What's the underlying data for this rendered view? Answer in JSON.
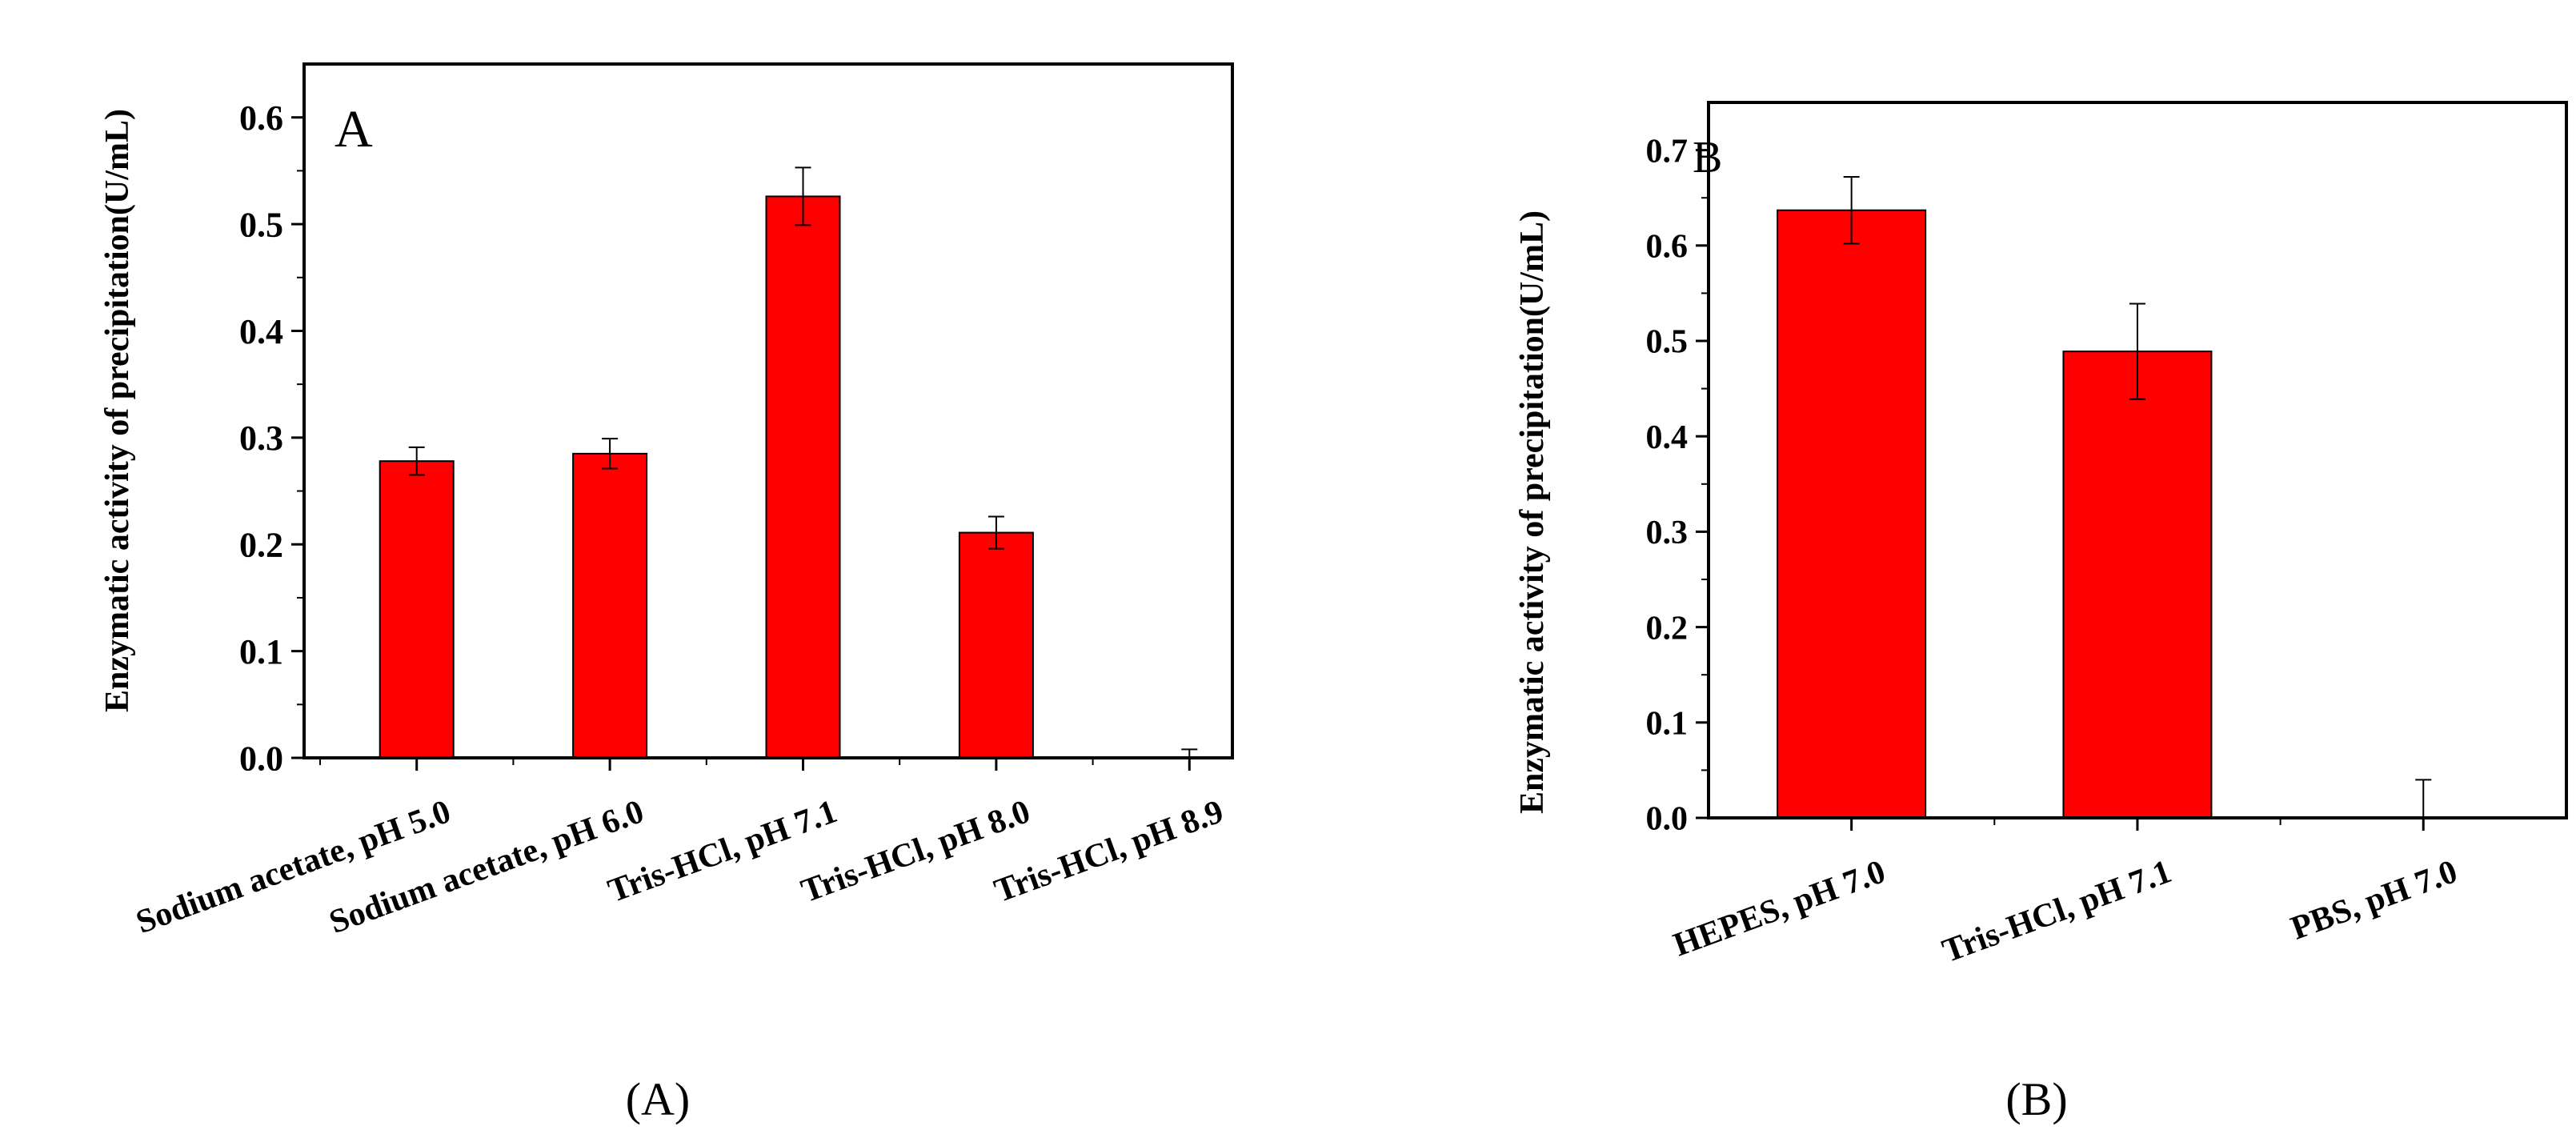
{
  "chart_data": [
    {
      "type": "bar",
      "panel_letter": "A",
      "caption": "(A)",
      "ylabel": "Enzymatic activity of precipitation(U/mL)",
      "ylim": [
        0.0,
        0.65
      ],
      "yticks": [
        "0.0",
        "0.1",
        "0.2",
        "0.3",
        "0.4",
        "0.5",
        "0.6"
      ],
      "categories": [
        "Sodium acetate, pH 5.0",
        "Sodium acetate, pH 6.0",
        "Tris-HCl, pH 7.1",
        "Tris-HCl, pH 8.0",
        "Tris-HCl, pH 8.9"
      ],
      "values": [
        0.278,
        0.285,
        0.526,
        0.211,
        0.0
      ],
      "errors": [
        0.013,
        0.014,
        0.027,
        0.015,
        0.008
      ],
      "bar_color": "#ff0000",
      "grid": false
    },
    {
      "type": "bar",
      "panel_letter": "B",
      "caption": "(B)",
      "ylabel": "Enzymatic activity of precipitation(U/mL)",
      "ylim": [
        0.0,
        0.75
      ],
      "yticks": [
        "0.0",
        "0.1",
        "0.2",
        "0.3",
        "0.4",
        "0.5",
        "0.6",
        "0.7"
      ],
      "categories": [
        "HEPES, pH 7.0",
        "Tris-HCl, pH 7.1",
        "PBS, pH 7.0"
      ],
      "values": [
        0.637,
        0.489,
        0.0
      ],
      "errors": [
        0.035,
        0.05,
        0.04
      ],
      "bar_color": "#ff0000",
      "grid": false
    }
  ]
}
